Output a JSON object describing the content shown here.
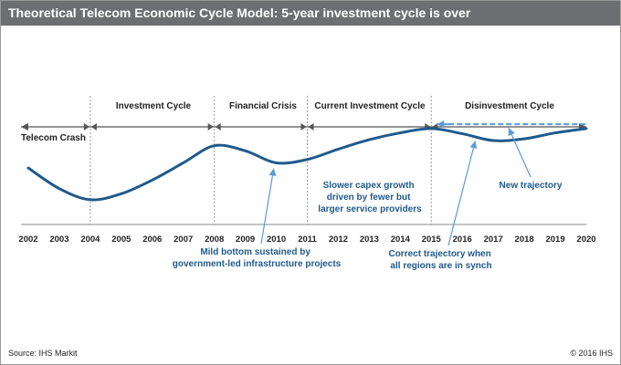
{
  "title": "Theoretical Telecom Economic Cycle Model: 5-year investment cycle is over",
  "footer": {
    "source": "Source: IHS Markit",
    "copyright": "© 2016 IHS"
  },
  "colors": {
    "title_bar": "#6d6e71",
    "curve": "#1f5a8c",
    "arrow_line": "#555555",
    "trajectory": "#5b9bd5"
  },
  "chart_data": {
    "type": "line",
    "title": "Theoretical Telecom Economic Cycle Model: 5-year investment cycle is over",
    "xlabel": "",
    "ylabel": "",
    "x_ticks": [
      "2002",
      "2003",
      "2004",
      "2005",
      "2006",
      "2007",
      "2008",
      "2009",
      "2010",
      "2011",
      "2012",
      "2013",
      "2014",
      "2015",
      "2016",
      "2017",
      "2018",
      "2019",
      "2020"
    ],
    "xlim": [
      2002,
      2020
    ],
    "ylim": [
      0,
      1
    ],
    "grid": false,
    "divider_years": [
      2004,
      2008,
      2011,
      2015
    ],
    "phases": [
      {
        "label": "Telecom Crash"
      },
      {
        "label": "Investment Cycle"
      },
      {
        "label": "Financial Crisis"
      },
      {
        "label": "Current Investment Cycle"
      },
      {
        "label": "Disinvestment Cycle"
      }
    ],
    "series": [
      {
        "points": [
          [
            2002,
            0.52
          ],
          [
            2003,
            0.28
          ],
          [
            2004,
            0.15
          ],
          [
            2005,
            0.22
          ],
          [
            2006,
            0.38
          ],
          [
            2007,
            0.58
          ],
          [
            2008,
            0.78
          ],
          [
            2009,
            0.72
          ],
          [
            2010,
            0.58
          ],
          [
            2011,
            0.62
          ],
          [
            2012,
            0.74
          ],
          [
            2013,
            0.85
          ],
          [
            2014,
            0.93
          ],
          [
            2015,
            0.98
          ],
          [
            2016,
            0.92
          ],
          [
            2017,
            0.84
          ],
          [
            2018,
            0.86
          ],
          [
            2019,
            0.93
          ],
          [
            2020,
            0.98
          ]
        ]
      }
    ],
    "new_trajectory": {
      "from": 2015,
      "to": 2020,
      "value": 1.03
    },
    "annotations": [
      {
        "id": "mild-bottom",
        "lines": [
          "Mild bottom sustained by",
          "government-led infrastructure projects"
        ],
        "target": [
          2010,
          0.58
        ]
      },
      {
        "id": "slower-capex",
        "lines": [
          "Slower capex growth",
          "driven by fewer but",
          "larger service providers"
        ]
      },
      {
        "id": "new-trajectory",
        "lines": [
          "New trajectory"
        ],
        "target": [
          2017.2,
          1.03
        ]
      },
      {
        "id": "correct-trajectory",
        "lines": [
          "Correct trajectory when",
          "all regions are in synch"
        ],
        "target": [
          2016.3,
          0.9
        ]
      }
    ]
  }
}
